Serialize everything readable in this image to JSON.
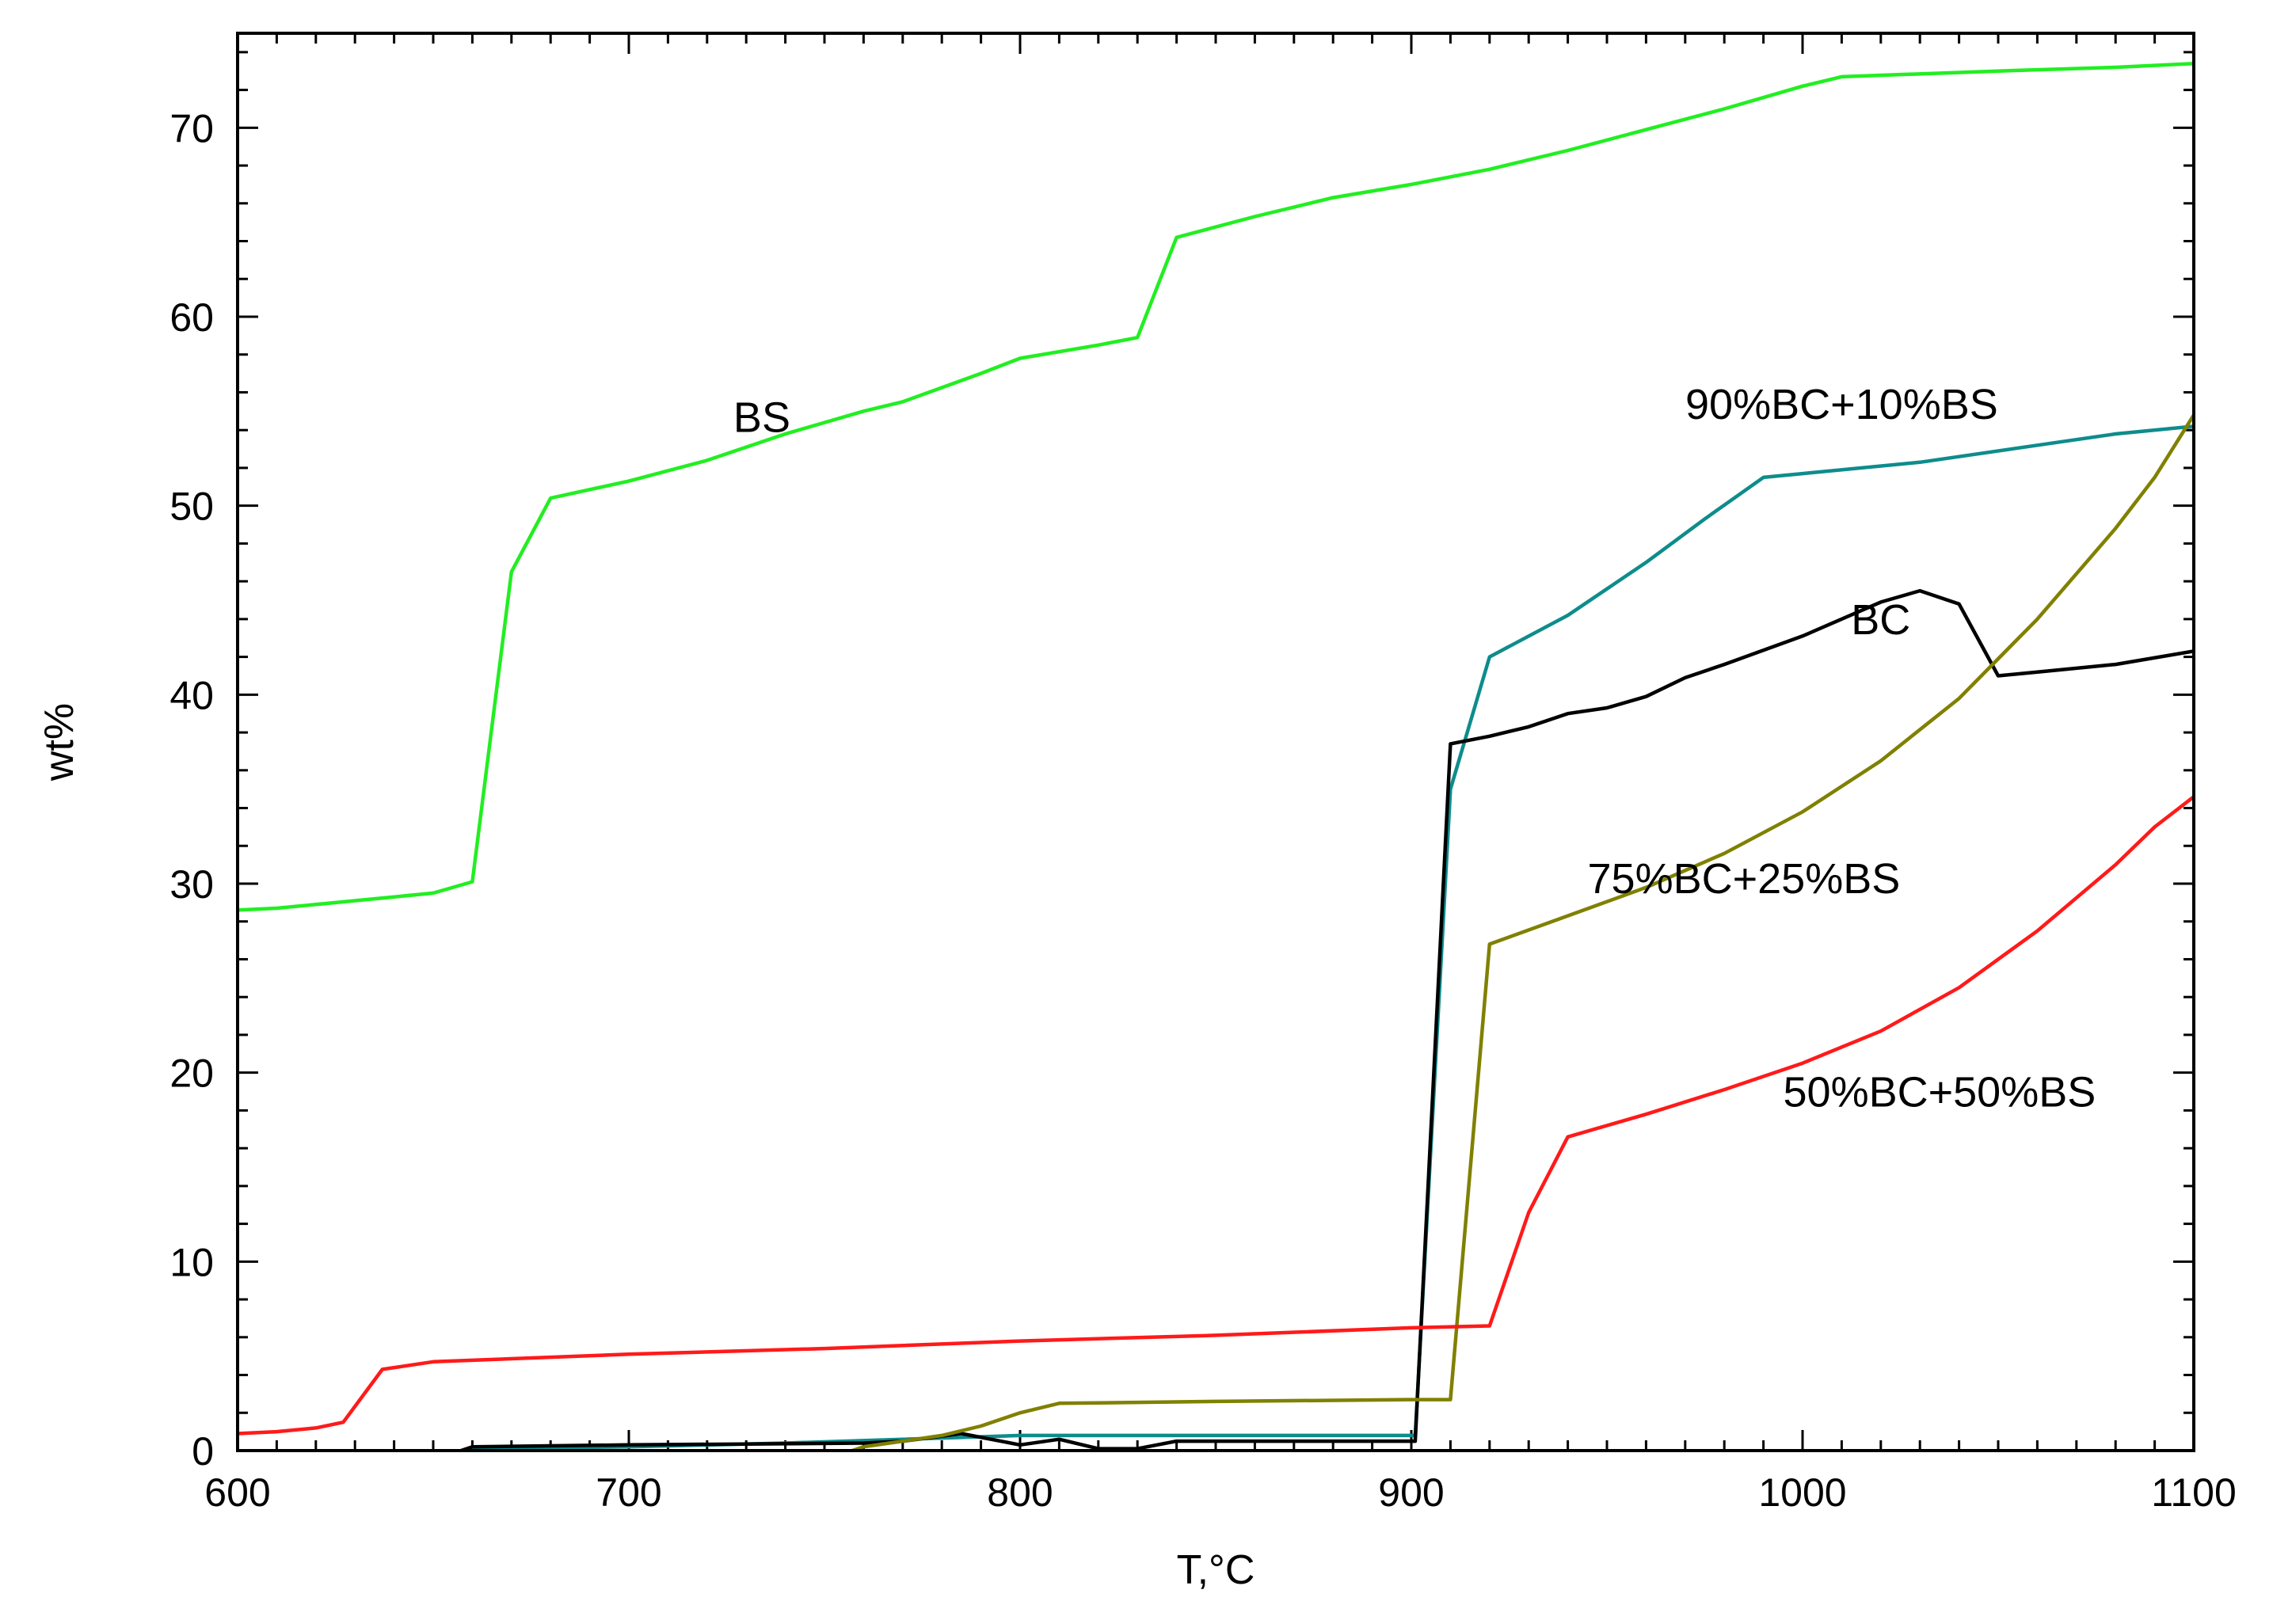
{
  "chart_data": {
    "type": "line",
    "title": "",
    "xlabel": "T,°C",
    "ylabel": "wt%",
    "xlim": [
      600,
      1100
    ],
    "ylim": [
      0,
      75
    ],
    "xticks": [
      600,
      700,
      800,
      900,
      1000,
      1100
    ],
    "yticks": [
      0,
      10,
      20,
      30,
      40,
      50,
      60,
      70
    ],
    "grid": false,
    "legend": "none",
    "series": [
      {
        "name": "BS",
        "color": "#22ee22",
        "points": [
          [
            600,
            28.6
          ],
          [
            610,
            28.7
          ],
          [
            620,
            28.9
          ],
          [
            630,
            29.1
          ],
          [
            640,
            29.3
          ],
          [
            650,
            29.5
          ],
          [
            660,
            30.1
          ],
          [
            670,
            46.5
          ],
          [
            680,
            50.4
          ],
          [
            700,
            51.3
          ],
          [
            720,
            52.4
          ],
          [
            740,
            53.8
          ],
          [
            760,
            55.0
          ],
          [
            770,
            55.5
          ],
          [
            790,
            57.0
          ],
          [
            800,
            57.8
          ],
          [
            820,
            58.5
          ],
          [
            830,
            58.9
          ],
          [
            840,
            64.2
          ],
          [
            860,
            65.3
          ],
          [
            880,
            66.3
          ],
          [
            900,
            67.0
          ],
          [
            920,
            67.8
          ],
          [
            940,
            68.8
          ],
          [
            960,
            69.9
          ],
          [
            980,
            71.0
          ],
          [
            1000,
            72.2
          ],
          [
            1010,
            72.7
          ],
          [
            1050,
            73.0
          ],
          [
            1080,
            73.2
          ],
          [
            1100,
            73.4
          ]
        ]
      },
      {
        "name": "90%BC+10%BS",
        "color": "#0e8c8c",
        "points": [
          [
            650,
            -0.5
          ],
          [
            660,
            0.1
          ],
          [
            700,
            0.2
          ],
          [
            740,
            0.4
          ],
          [
            770,
            0.6
          ],
          [
            800,
            0.8
          ],
          [
            900,
            0.8
          ],
          [
            901,
            0.8
          ],
          [
            910,
            35.0
          ],
          [
            920,
            42.0
          ],
          [
            940,
            44.2
          ],
          [
            960,
            47.0
          ],
          [
            975,
            49.3
          ],
          [
            990,
            51.5
          ],
          [
            1000,
            51.7
          ],
          [
            1030,
            52.3
          ],
          [
            1060,
            53.2
          ],
          [
            1080,
            53.8
          ],
          [
            1100,
            54.2
          ]
        ]
      },
      {
        "name": "BC",
        "color": "#000000",
        "points": [
          [
            650,
            -0.5
          ],
          [
            660,
            0.2
          ],
          [
            700,
            0.3
          ],
          [
            760,
            0.4
          ],
          [
            770,
            0.5
          ],
          [
            785,
            0.9
          ],
          [
            800,
            0.3
          ],
          [
            810,
            0.6
          ],
          [
            820,
            0.1
          ],
          [
            830,
            0.1
          ],
          [
            840,
            0.5
          ],
          [
            900,
            0.5
          ],
          [
            901,
            0.5
          ],
          [
            910,
            37.4
          ],
          [
            920,
            37.8
          ],
          [
            930,
            38.3
          ],
          [
            940,
            39.0
          ],
          [
            950,
            39.3
          ],
          [
            960,
            39.9
          ],
          [
            970,
            40.9
          ],
          [
            980,
            41.6
          ],
          [
            1000,
            43.1
          ],
          [
            1020,
            44.9
          ],
          [
            1030,
            45.5
          ],
          [
            1040,
            44.8
          ],
          [
            1050,
            41.0
          ],
          [
            1060,
            41.2
          ],
          [
            1080,
            41.6
          ],
          [
            1100,
            42.3
          ]
        ]
      },
      {
        "name": "75%BC+25%BS",
        "color": "#808000",
        "points": [
          [
            750,
            -0.5
          ],
          [
            760,
            0.2
          ],
          [
            770,
            0.5
          ],
          [
            780,
            0.8
          ],
          [
            790,
            1.3
          ],
          [
            800,
            2.0
          ],
          [
            810,
            2.5
          ],
          [
            850,
            2.6
          ],
          [
            900,
            2.7
          ],
          [
            910,
            2.7
          ],
          [
            920,
            26.8
          ],
          [
            940,
            28.3
          ],
          [
            960,
            29.8
          ],
          [
            980,
            31.6
          ],
          [
            1000,
            33.8
          ],
          [
            1020,
            36.5
          ],
          [
            1040,
            39.8
          ],
          [
            1060,
            44.0
          ],
          [
            1080,
            48.8
          ],
          [
            1090,
            51.5
          ],
          [
            1100,
            54.8
          ]
        ]
      },
      {
        "name": "50%BC+50%BS",
        "color": "#ff1a1a",
        "points": [
          [
            600,
            0.9
          ],
          [
            610,
            1.0
          ],
          [
            620,
            1.2
          ],
          [
            627,
            1.5
          ],
          [
            637,
            4.3
          ],
          [
            650,
            4.7
          ],
          [
            700,
            5.1
          ],
          [
            750,
            5.4
          ],
          [
            800,
            5.8
          ],
          [
            850,
            6.1
          ],
          [
            900,
            6.5
          ],
          [
            920,
            6.6
          ],
          [
            930,
            12.6
          ],
          [
            940,
            16.6
          ],
          [
            960,
            17.8
          ],
          [
            980,
            19.1
          ],
          [
            1000,
            20.5
          ],
          [
            1020,
            22.2
          ],
          [
            1040,
            24.5
          ],
          [
            1060,
            27.5
          ],
          [
            1080,
            31.0
          ],
          [
            1090,
            33.0
          ],
          [
            1100,
            34.6
          ]
        ]
      }
    ],
    "annotations": [
      {
        "text": "BS",
        "x": 734,
        "y": 53.9
      },
      {
        "text": "90%BC+10%BS",
        "x": 1010,
        "y": 54.6
      },
      {
        "text": "BC",
        "x": 1020,
        "y": 43.2
      },
      {
        "text": "75%BC+25%BS",
        "x": 985,
        "y": 29.5
      },
      {
        "text": "50%BC+50%BS",
        "x": 1035,
        "y": 18.2
      }
    ]
  }
}
